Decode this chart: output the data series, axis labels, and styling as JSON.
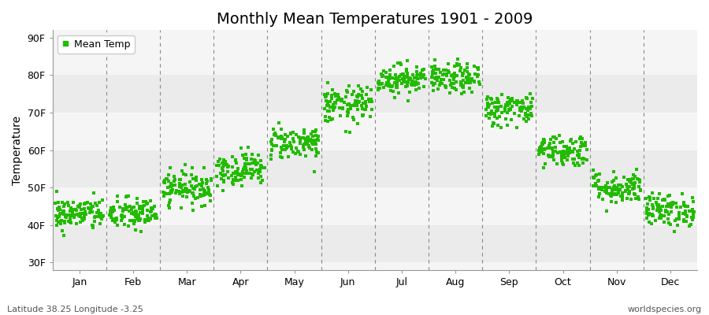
{
  "title": "Monthly Mean Temperatures 1901 - 2009",
  "ylabel": "Temperature",
  "xlabel_months": [
    "Jan",
    "Feb",
    "Mar",
    "Apr",
    "May",
    "Jun",
    "Jul",
    "Aug",
    "Sep",
    "Oct",
    "Nov",
    "Dec"
  ],
  "yticks": [
    30,
    40,
    50,
    60,
    70,
    80,
    90
  ],
  "ytick_labels": [
    "30F",
    "40F",
    "50F",
    "60F",
    "70F",
    "80F",
    "90F"
  ],
  "ylim": [
    28,
    92
  ],
  "xlim": [
    0,
    12
  ],
  "dot_color": "#22bb00",
  "dot_size": 5,
  "background_color": "#ffffff",
  "plot_bg_color": "#f5f5f5",
  "alt_band_color": "#ebebeb",
  "grid_color": "#aaaaaa",
  "title_fontsize": 14,
  "axis_fontsize": 10,
  "tick_fontsize": 9,
  "footer_left": "Latitude 38.25 Longitude -3.25",
  "footer_right": "worldspecies.org",
  "legend_label": "Mean Temp",
  "monthly_means_F": [
    43,
    43,
    50,
    55,
    62,
    72,
    79,
    79,
    71,
    60,
    50,
    44
  ],
  "monthly_stds_F": [
    2.2,
    2.2,
    2.2,
    2.2,
    2.2,
    2.5,
    2.0,
    2.0,
    2.2,
    2.2,
    2.2,
    2.2
  ],
  "n_years": 109
}
